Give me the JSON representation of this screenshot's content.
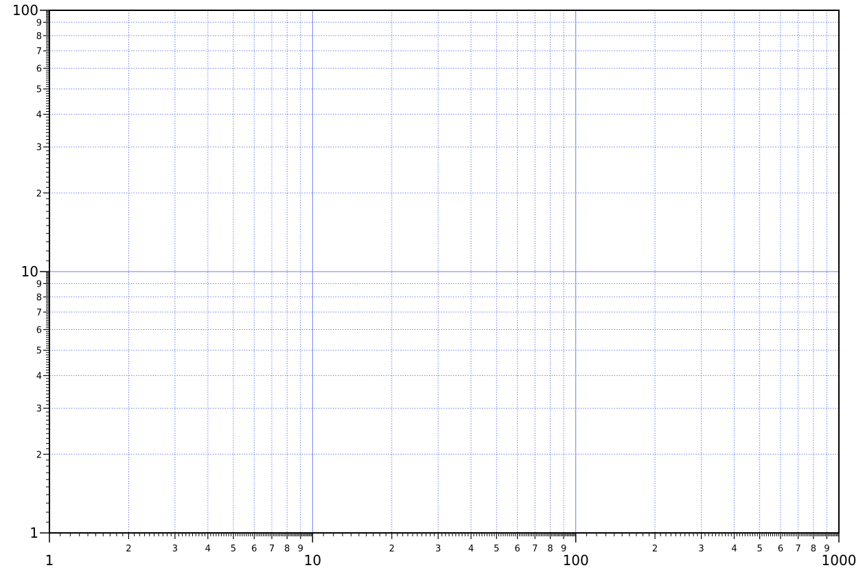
{
  "chart_data": {
    "type": "scatter",
    "title": "",
    "xlabel": "",
    "ylabel": "",
    "x_scale": "log",
    "y_scale": "log",
    "xlim": [
      1,
      1000
    ],
    "ylim": [
      1,
      100
    ],
    "grid": true,
    "series": [],
    "x_major_ticks": [
      "1",
      "10",
      "100",
      "1000"
    ],
    "x_minor_ticks": [
      "2",
      "3",
      "4",
      "5",
      "6",
      "7",
      "8",
      "9"
    ],
    "y_major_ticks": [
      "1",
      "10",
      "100"
    ],
    "y_minor_ticks": [
      "2",
      "3",
      "4",
      "5",
      "6",
      "7",
      "8",
      "9"
    ],
    "colors": {
      "major_grid": "#6f7ff0",
      "minor_grid": "#6f7ff0",
      "axis": "#000000",
      "background": "#ffffff"
    }
  }
}
